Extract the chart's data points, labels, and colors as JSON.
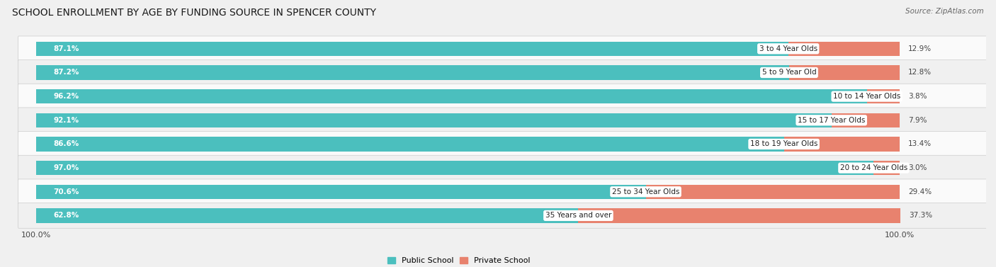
{
  "title": "SCHOOL ENROLLMENT BY AGE BY FUNDING SOURCE IN SPENCER COUNTY",
  "source": "Source: ZipAtlas.com",
  "categories": [
    "3 to 4 Year Olds",
    "5 to 9 Year Old",
    "10 to 14 Year Olds",
    "15 to 17 Year Olds",
    "18 to 19 Year Olds",
    "20 to 24 Year Olds",
    "25 to 34 Year Olds",
    "35 Years and over"
  ],
  "public_values": [
    87.1,
    87.2,
    96.2,
    92.1,
    86.6,
    97.0,
    70.6,
    62.8
  ],
  "private_values": [
    12.9,
    12.8,
    3.8,
    7.9,
    13.4,
    3.0,
    29.4,
    37.3
  ],
  "public_color": "#4BBFBE",
  "private_color": "#E8826E",
  "bg_color": "#f0f0f0",
  "row_bg_light": "#fafafa",
  "row_bg_dark": "#f0f0f0",
  "axis_label_left": "100.0%",
  "axis_label_right": "100.0%",
  "legend_public": "Public School",
  "legend_private": "Private School",
  "title_fontsize": 10,
  "source_fontsize": 7.5,
  "bar_label_fontsize": 7.5,
  "category_fontsize": 7.5,
  "axis_fontsize": 8
}
